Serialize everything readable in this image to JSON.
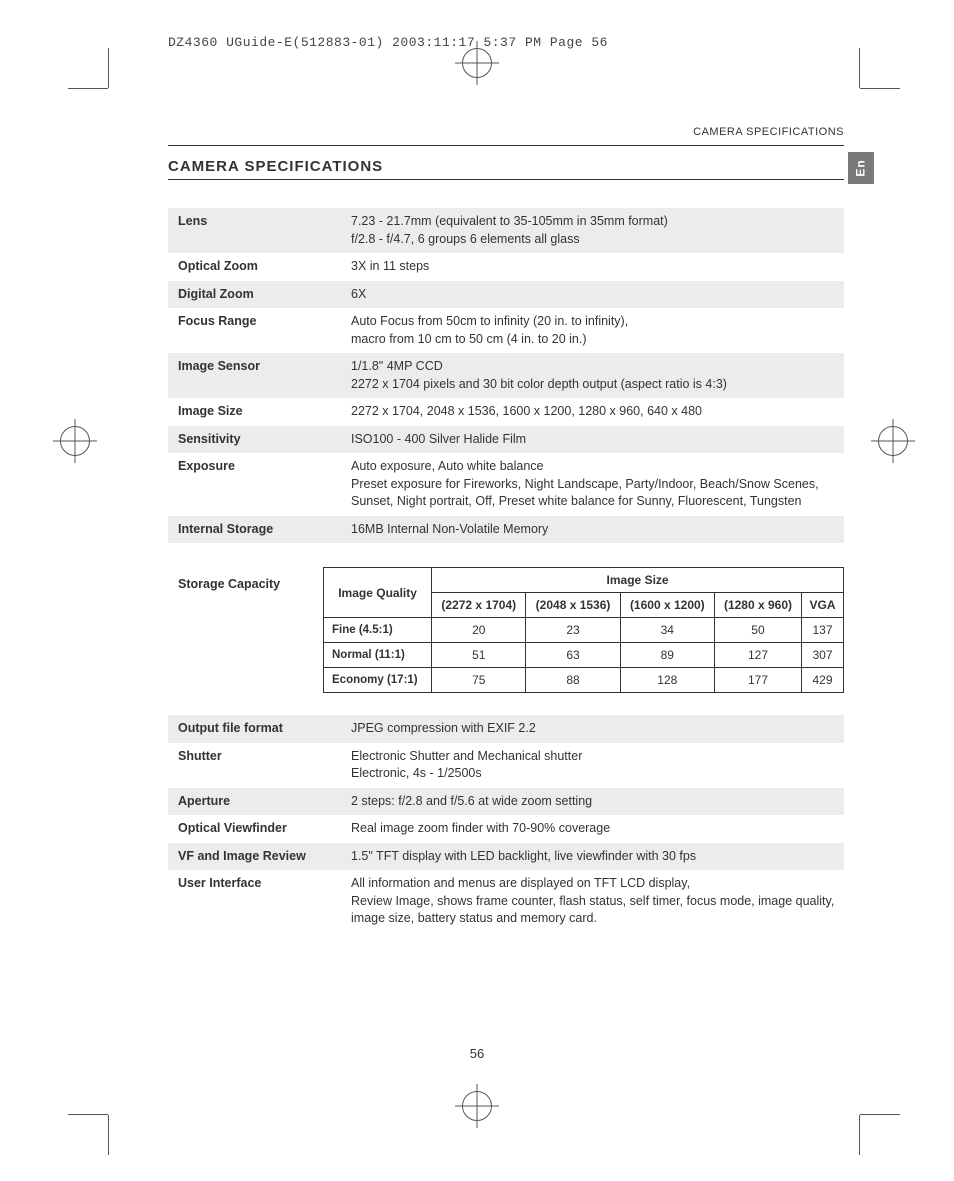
{
  "print_header": "DZ4360 UGuide-E(512883-01)  2003:11:17  5:37 PM  Page 56",
  "header_right": "CAMERA SPECIFICATIONS",
  "section_title": "CAMERA SPECIFICATIONS",
  "lang_tab": "En",
  "page_number": "56",
  "specs_top": [
    {
      "label": "Lens",
      "value": "7.23 - 21.7mm (equivalent to 35-105mm in 35mm format)\nf/2.8 - f/4.7, 6 groups 6 elements all glass",
      "shaded": true
    },
    {
      "label": "Optical Zoom",
      "value": "3X in 11 steps",
      "shaded": false
    },
    {
      "label": "Digital Zoom",
      "value": "6X",
      "shaded": true
    },
    {
      "label": "Focus Range",
      "value": "Auto Focus from 50cm to infinity (20 in. to infinity),\nmacro from 10 cm to 50 cm (4 in. to 20 in.)",
      "shaded": false
    },
    {
      "label": "Image Sensor",
      "value": "1/1.8\" 4MP CCD\n2272 x 1704 pixels and 30 bit color depth output (aspect ratio is 4:3)",
      "shaded": true
    },
    {
      "label": "Image Size",
      "value": "2272 x 1704, 2048 x 1536, 1600 x 1200, 1280 x 960, 640 x 480",
      "shaded": false
    },
    {
      "label": "Sensitivity",
      "value": "ISO100 - 400 Silver Halide Film",
      "shaded": true
    },
    {
      "label": "Exposure",
      "value": "Auto exposure, Auto white balance\nPreset exposure for Fireworks, Night Landscape, Party/Indoor, Beach/Snow Scenes, Sunset, Night portrait, Off, Preset white balance for Sunny, Fluorescent, Tungsten",
      "shaded": false
    },
    {
      "label": "Internal Storage",
      "value": "16MB Internal Non-Volatile Memory",
      "shaded": true
    }
  ],
  "storage": {
    "label": "Storage Capacity",
    "quality_header": "Image Quality",
    "size_header": "Image Size",
    "columns": [
      "(2272 x 1704)",
      "(2048 x 1536)",
      "(1600 x 1200)",
      "(1280 x 960)",
      "VGA"
    ],
    "rows": [
      {
        "quality": "Fine (4.5:1)",
        "values": [
          "20",
          "23",
          "34",
          "50",
          "137"
        ]
      },
      {
        "quality": "Normal (11:1)",
        "values": [
          "51",
          "63",
          "89",
          "127",
          "307"
        ]
      },
      {
        "quality": "Economy (17:1)",
        "values": [
          "75",
          "88",
          "128",
          "177",
          "429"
        ]
      }
    ]
  },
  "specs_bottom": [
    {
      "label": "Output file format",
      "value": "JPEG compression with EXIF 2.2",
      "shaded": true
    },
    {
      "label": "Shutter",
      "value": "Electronic Shutter and Mechanical shutter\nElectronic, 4s - 1/2500s",
      "shaded": false
    },
    {
      "label": "Aperture",
      "value": "2 steps: f/2.8 and f/5.6 at wide zoom setting",
      "shaded": true
    },
    {
      "label": "Optical Viewfinder",
      "value": "Real image zoom finder with 70-90% coverage",
      "shaded": false
    },
    {
      "label": "VF and Image Review",
      "value": "1.5\" TFT display with LED backlight, live viewfinder with 30 fps",
      "shaded": true
    },
    {
      "label": "User Interface",
      "value": "All information and menus are displayed on TFT LCD display,\nReview Image, shows frame counter, flash status, self timer, focus mode, image quality, image size, battery status and memory card.",
      "shaded": false
    }
  ]
}
